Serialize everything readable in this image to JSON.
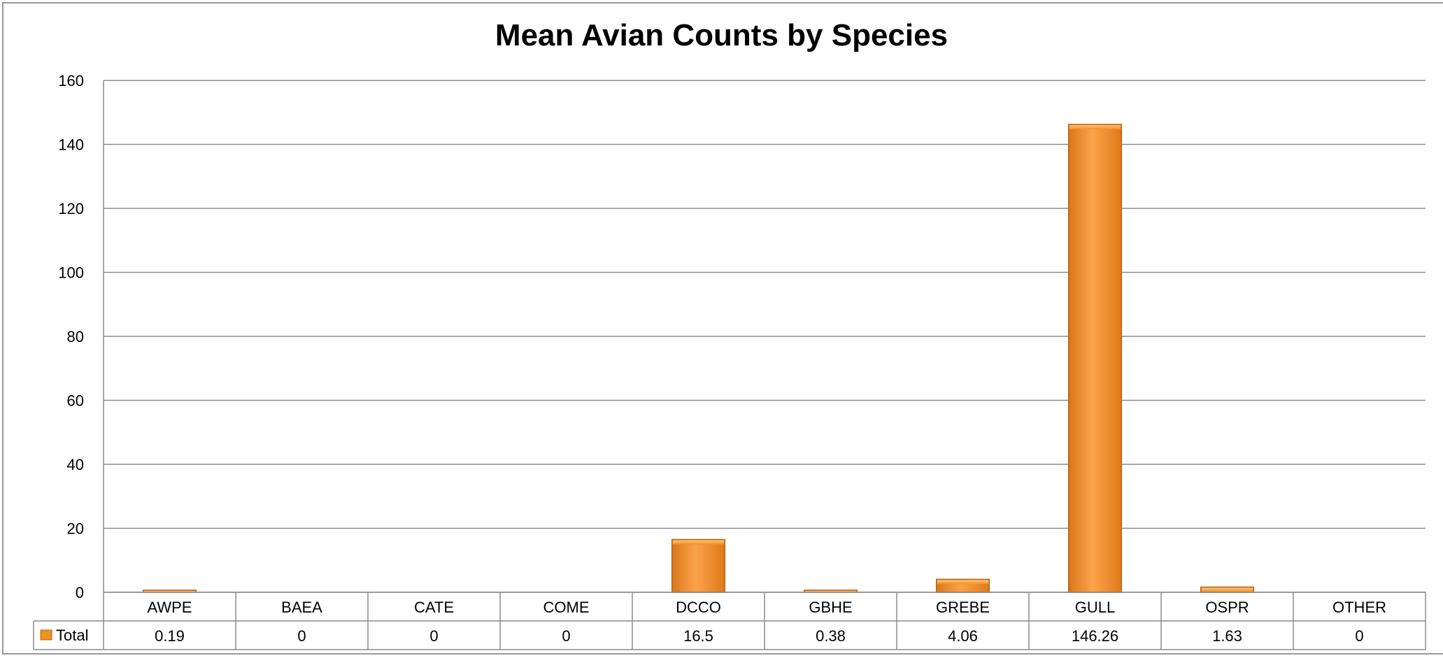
{
  "chart_data": {
    "type": "bar",
    "title": "Mean Avian Counts by Species",
    "xlabel": "",
    "ylabel": "",
    "ylim": [
      0,
      160
    ],
    "yticks": [
      0,
      20,
      40,
      60,
      80,
      100,
      120,
      140,
      160
    ],
    "grid": true,
    "legend": "data-table-left",
    "categories": [
      "AWPE",
      "BAEA",
      "CATE",
      "COME",
      "DCCO",
      "GBHE",
      "GREBE",
      "GULL",
      "OSPR",
      "OTHER"
    ],
    "series": [
      {
        "name": "Total",
        "color": "#F0921E",
        "values": [
          0.19,
          0,
          0,
          0,
          16.5,
          0.38,
          4.06,
          146.26,
          1.63,
          0
        ],
        "value_labels": [
          "0.19",
          "0",
          "0",
          "0",
          "16.5",
          "0.38",
          "4.06",
          "146.26",
          "1.63",
          "0"
        ]
      }
    ]
  }
}
